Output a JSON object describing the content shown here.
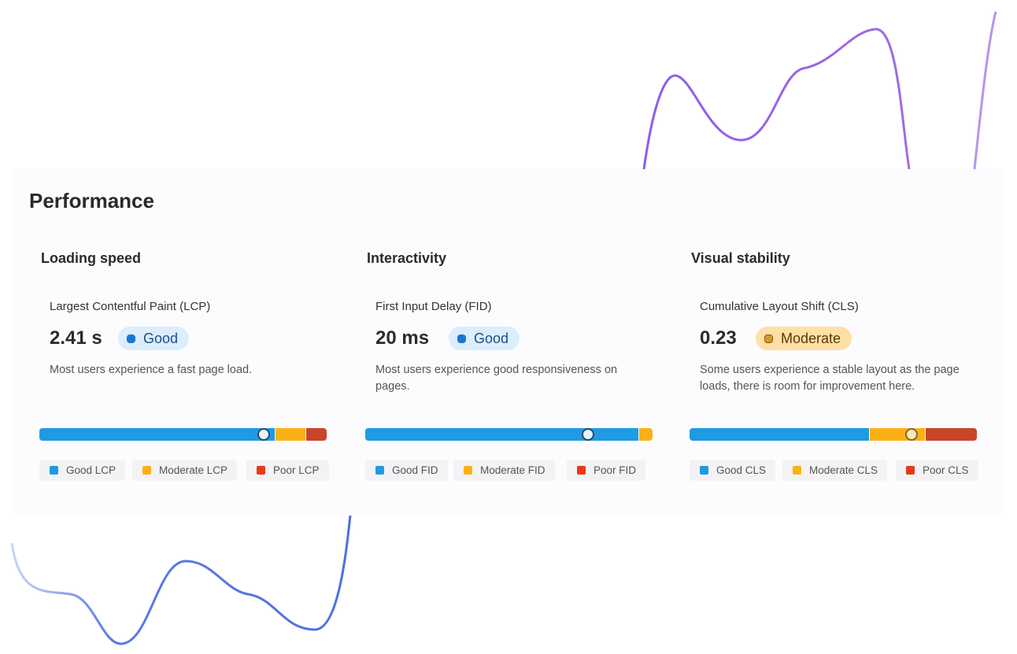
{
  "title": "Performance",
  "cards": [
    {
      "heading": "Loading speed",
      "metric": "Largest Contentful Paint (LCP)",
      "value": "2.41 s",
      "status": "Good",
      "description": "Most users experience a fast page load.",
      "legend": [
        "Good LCP",
        "Moderate LCP",
        "Poor LCP"
      ]
    },
    {
      "heading": "Interactivity",
      "metric": "First Input Delay (FID)",
      "value": "20 ms",
      "status": "Good",
      "description": "Most users experience good responsiveness on pages.",
      "legend": [
        "Good FID",
        "Moderate FID",
        "Poor FID"
      ]
    },
    {
      "heading": "Visual stability",
      "metric": "Cumulative Layout Shift (CLS)",
      "value": "0.23",
      "status": "Moderate",
      "description": "Some users experience a stable layout as the page loads, there is room for improvement here.",
      "legend": [
        "Good CLS",
        "Moderate CLS",
        "Poor CLS"
      ]
    }
  ]
}
